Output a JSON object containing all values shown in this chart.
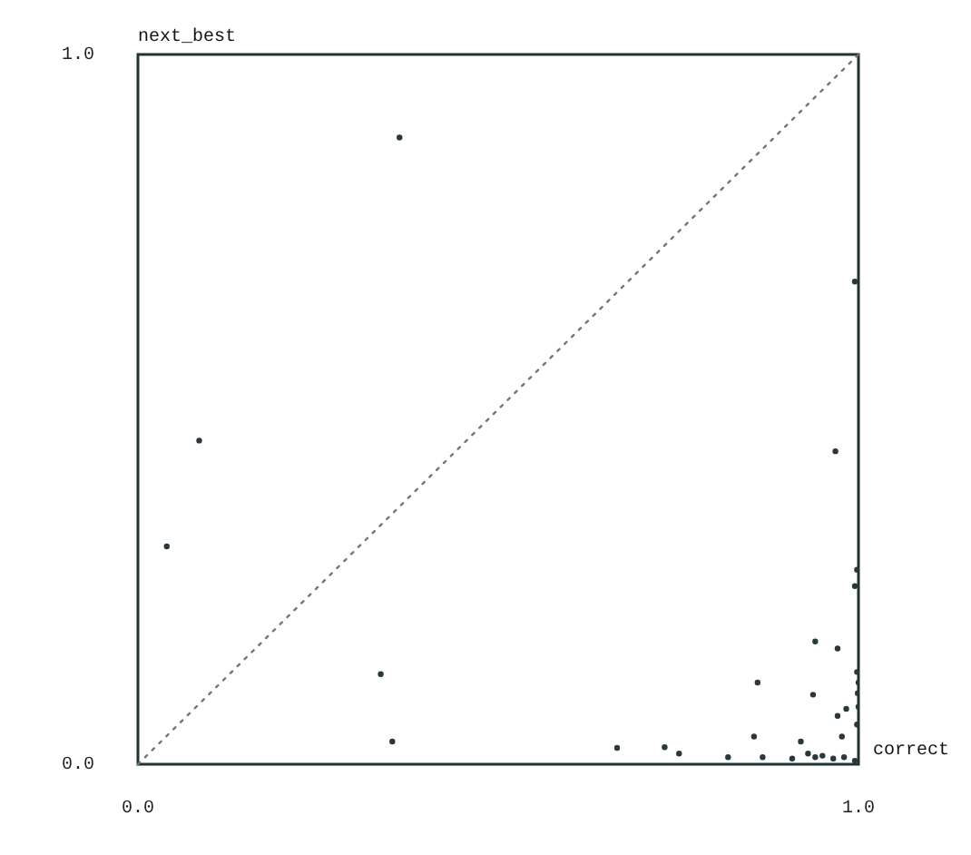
{
  "chart_data": {
    "type": "scatter",
    "xlabel": "correct",
    "ylabel": "next_best",
    "xlim": [
      0,
      1
    ],
    "ylim": [
      0,
      1
    ],
    "xticks": [
      {
        "value": 0,
        "label": "0.0"
      },
      {
        "value": 1,
        "label": "1.0"
      }
    ],
    "yticks": [
      {
        "value": 0,
        "label": "0.0"
      },
      {
        "value": 1,
        "label": "1.0"
      }
    ],
    "legend": false,
    "series": [
      {
        "color": "#2a3838",
        "marker": "circle",
        "x": [
          0.363,
          0.085,
          0.04,
          0.968,
          0.337,
          0.353,
          0.998,
          0.995,
          0.995,
          0.94,
          0.971,
          0.86,
          0.937,
          1.0,
          0.983,
          0.971,
          1.0,
          0.998,
          0.977,
          0.855,
          0.665,
          0.731,
          0.751,
          0.819,
          0.867,
          0.908,
          0.92,
          0.93,
          0.94,
          0.95,
          0.965,
          0.98,
          0.995,
          0.998,
          0.999
        ],
        "values": [
          0.883,
          0.456,
          0.307,
          0.441,
          0.127,
          0.032,
          0.274,
          0.251,
          0.68,
          0.173,
          0.163,
          0.115,
          0.098,
          0.115,
          0.078,
          0.068,
          0.081,
          0.056,
          0.039,
          0.039,
          0.023,
          0.024,
          0.015,
          0.01,
          0.01,
          0.008,
          0.032,
          0.015,
          0.01,
          0.012,
          0.008,
          0.01,
          0.005,
          0.13,
          0.1
        ]
      },
      {
        "type": "line",
        "color": "#6a7a7a",
        "line_style": "dotted",
        "marker": "none",
        "x": [
          0,
          1
        ],
        "values": [
          0,
          1
        ]
      }
    ]
  }
}
